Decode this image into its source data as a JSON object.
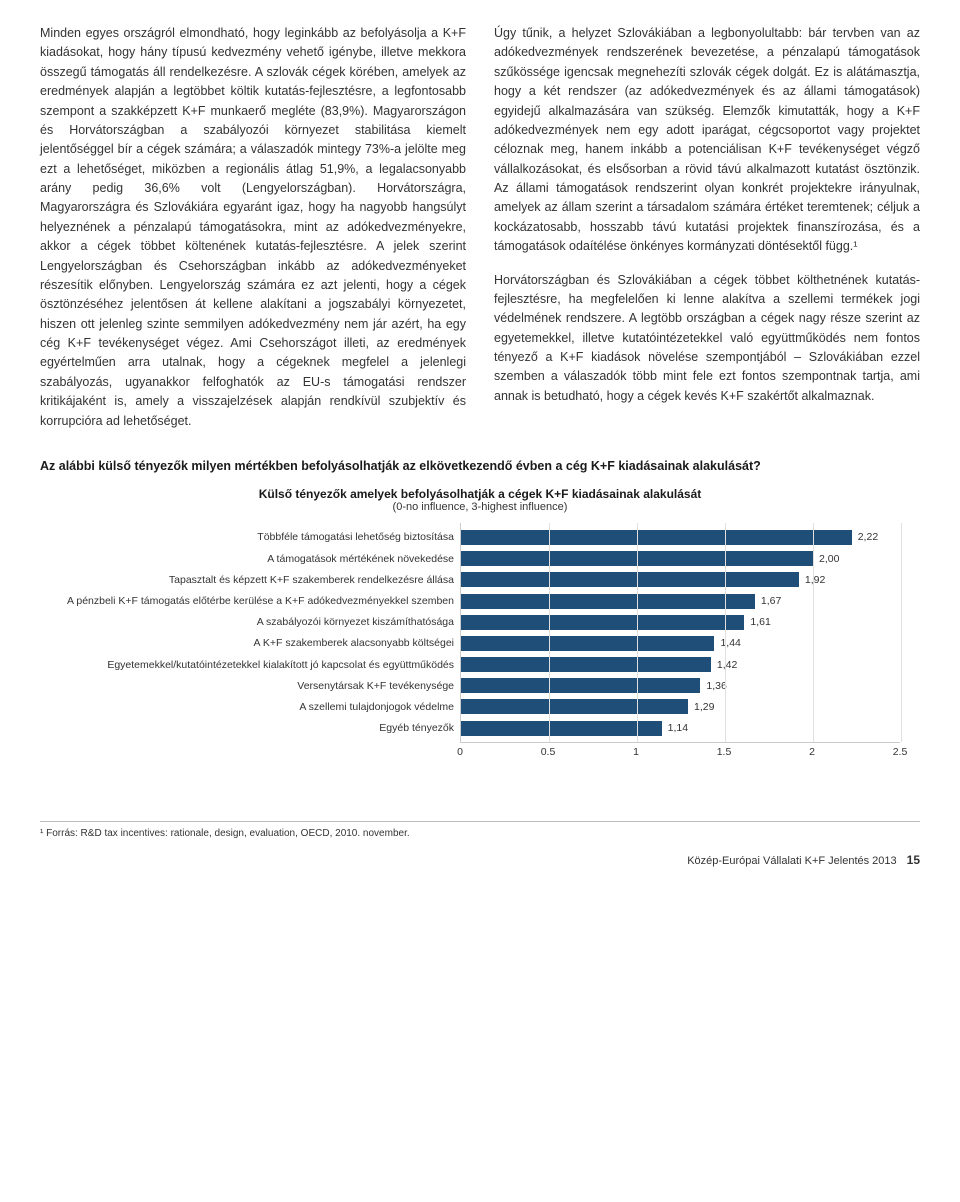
{
  "left_column_text": "Minden egyes országról elmondható, hogy leginkább az befolyásolja a K+F kiadásokat, hogy hány típusú kedvezmény vehető igénybe, illetve mekkora összegű támogatás áll rendelkezésre. A szlovák cégek körében, amelyek az eredmények alapján a legtöbbet költik kutatás-fejlesztésre, a legfontosabb szempont a szakképzett K+F munkaerő megléte (83,9%). Magyarországon és Horvátországban a szabályozói környezet stabilitása kiemelt jelentőséggel bír a cégek számára; a válaszadók mintegy 73%-a jelölte meg ezt a lehetőséget, miközben a regionális átlag 51,9%, a legalacsonyabb arány pedig 36,6% volt (Lengyelországban). Horvátországra, Magyarországra és Szlovákiára egyaránt igaz, hogy ha nagyobb hangsúlyt helyeznének a pénzalapú támogatásokra, mint az adókedvezményekre, akkor a cégek többet költenének kutatás-fejlesztésre. A jelek szerint Lengyelországban és Csehországban inkább az adókedvezményeket részesítik előnyben. Lengyelország számára ez azt jelenti, hogy a cégek ösztönzéséhez jelentősen át kellene alakítani a jogszabályi környezetet, hiszen ott jelenleg szinte semmilyen adókedvezmény nem jár azért, ha egy cég K+F tevékenységet végez. Ami Csehországot illeti, az eredmények egyértelműen arra utalnak, hogy a cégeknek megfelel a jelenlegi szabályozás, ugyanakkor felfoghatók az EU-s támogatási rendszer kritikájaként is, amely a visszajelzések alapján rendkívül szubjektív és korrupcióra ad lehetőséget.",
  "right_column_text": "Úgy tűnik, a helyzet Szlovákiában a legbonyolultabb: bár tervben van az adókedvezmények rendszerének bevezetése, a pénzalapú támogatások szűkössége igencsak megnehezíti szlovák cégek dolgát. Ez is alátámasztja, hogy a két rendszer (az adókedvezmények és az állami támogatások) egyidejű alkalmazására van szükség. Elemzők kimutatták, hogy a K+F adókedvezmények nem egy adott iparágat, cégcsoportot vagy projektet céloznak meg, hanem inkább a potenciálisan K+F tevékenységet végző vállalkozásokat, és elsősorban a rövid távú alkalmazott kutatást ösztönzik. Az állami támogatások rendszerint olyan konkrét projektekre irányulnak, amelyek az állam szerint a társadalom számára értéket teremtenek; céljuk a kockázatosabb, hosszabb távú kutatási projektek finanszírozása, és a támogatások odaítélése önkényes kormányzati döntésektől függ.¹\n\nHorvátországban és Szlovákiában a cégek többet költhetnének kutatás-fejlesztésre, ha megfelelően ki lenne alakítva a szellemi termékek jogi védelmének rendszere. A legtöbb országban a cégek nagy része szerint az egyetemekkel, illetve kutatóintézetekkel való együttműködés nem fontos tényező a K+F kiadások növelése szempontjából – Szlovákiában ezzel szemben a válaszadók több mint fele ezt fontos szempontnak tartja, ami annak is betudható, hogy a cégek kevés K+F szakértőt alkalmaznak.",
  "question_text": "Az alábbi külső tényezők milyen mértékben befolyásolhatják az elkövetkezendő évben a cég K+F kiadásainak alakulását?",
  "chart": {
    "type": "bar",
    "title": "Külső tényezők amelyek befolyásolhatják a cégek K+F kiadásainak alakulását",
    "subtitle": "(0-no influence, 3-highest influence)",
    "bar_color": "#1f4e79",
    "grid_color": "#e0e0e0",
    "axis_color": "#cccccc",
    "background_color": "#ffffff",
    "xlim": [
      0,
      2.5
    ],
    "xtick_step": 0.5,
    "xticks": [
      "0",
      "0.5",
      "1",
      "1.5",
      "2",
      "2.5"
    ],
    "categories": [
      "Többféle támogatási lehetőség biztosítása",
      "A támogatások mértékének növekedése",
      "Tapasztalt és képzett K+F szakemberek rendelkezésre állása",
      "A pénzbeli K+F támogatás előtérbe kerülése a K+F adókedvezményekkel szemben",
      "A szabályozói környezet kiszámíthatósága",
      "A K+F szakemberek alacsonyabb költségei",
      "Egyetemekkel/kutatóintézetekkel kialakított jó kapcsolat és együttműködés",
      "Versenytársak K+F tevékenysége",
      "A szellemi tulajdonjogok védelme",
      "Egyéb tényezők"
    ],
    "values": [
      2.22,
      2.0,
      1.92,
      1.67,
      1.61,
      1.44,
      1.42,
      1.36,
      1.29,
      1.14
    ],
    "value_labels": [
      "2,22",
      "2,00",
      "1,92",
      "1,67",
      "1,61",
      "1,44",
      "1,42",
      "1,36",
      "1,29",
      "1,14"
    ],
    "label_fontsize": 10.5,
    "title_fontsize": 12
  },
  "footnote": "¹ Forrás: R&D tax incentives: rationale, design, evaluation, OECD, 2010. november.",
  "footer_title": "Közép-Európai Vállalati K+F Jelentés 2013",
  "footer_page": "15"
}
